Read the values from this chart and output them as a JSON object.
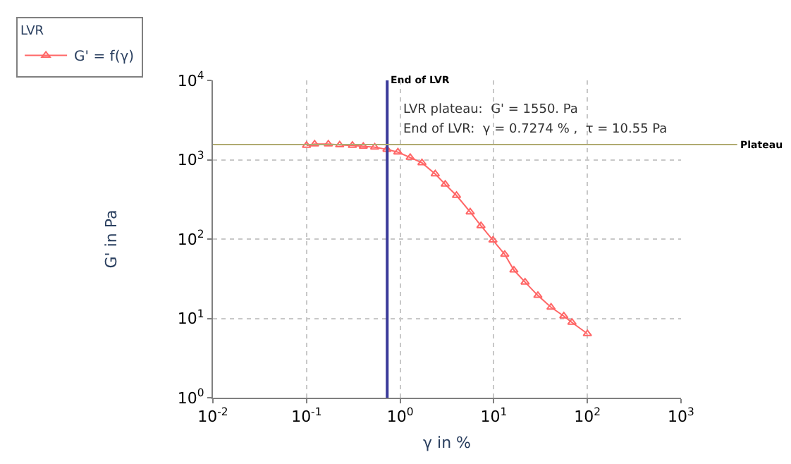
{
  "chart_data": {
    "type": "line",
    "xlabel": "γ in %",
    "ylabel": "G' in Pa",
    "legend_title": "LVR",
    "log": "xy",
    "grid": true,
    "legend": "top left",
    "marker": "triangle",
    "line_style": "solid",
    "xlim": [
      0.01,
      1000
    ],
    "ylim": [
      1,
      10000
    ],
    "xticks": [
      {
        "value": 0.01,
        "label": "10$^{-2}$"
      },
      {
        "value": 0.1,
        "label": "10$^{-1}$"
      },
      {
        "value": 1,
        "label": "10$^{0}$"
      },
      {
        "value": 10,
        "label": "10$^{1}$"
      },
      {
        "value": 100,
        "label": "10$^{2}$"
      },
      {
        "value": 1000,
        "label": "10$^{3}$"
      }
    ],
    "yticks": [
      {
        "value": 1,
        "label": "10$^{0}$"
      },
      {
        "value": 10,
        "label": "10$^{1}$"
      },
      {
        "value": 100,
        "label": "10$^{2}$"
      },
      {
        "value": 1000,
        "label": "10$^{3}$"
      },
      {
        "value": 10000,
        "label": "10$^{4}$"
      }
    ],
    "series": [
      {
        "name": "G' = f(γ)",
        "color": "#ff6666",
        "x": [
          0.1,
          0.122,
          0.171,
          0.226,
          0.309,
          0.404,
          0.535,
          0.723,
          0.946,
          1.28,
          1.71,
          2.37,
          3.03,
          4.0,
          5.6,
          7.3,
          9.8,
          13.1,
          16.4,
          21.6,
          29.6,
          40.9,
          56,
          68.4,
          100
        ],
        "values": [
          1514,
          1574,
          1574,
          1535,
          1514,
          1475,
          1438,
          1349,
          1247,
          1067,
          914,
          661,
          490,
          354,
          219,
          147,
          96.8,
          64,
          40.6,
          28.6,
          19.4,
          13.8,
          10.7,
          8.9,
          6.4
        ]
      }
    ],
    "ref_lines": [
      {
        "axis": "x",
        "value": 0.7274,
        "label": "End of LVR",
        "color": "#3a3a9a"
      },
      {
        "axis": "y",
        "value": 1550,
        "label": "Plateau",
        "color": "#b0aa70"
      }
    ],
    "annotations": [
      "LVR plateau:  G' = 1550. Pa",
      "End of LVR:  γ = 0.7274 % ,  τ = 10.55 Pa"
    ]
  }
}
